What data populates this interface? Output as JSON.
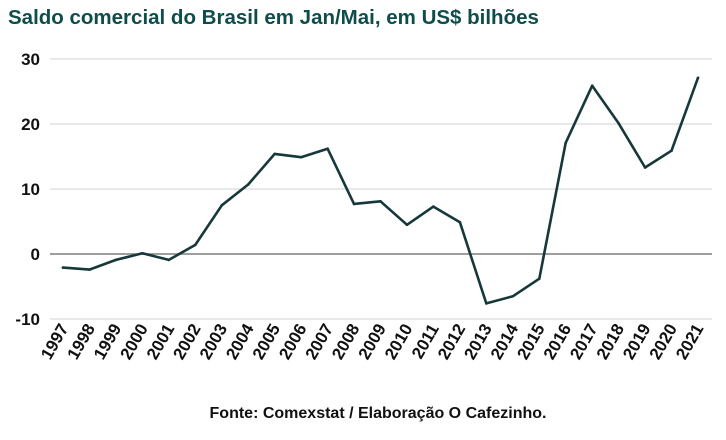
{
  "title": "Saldo comercial do Brasil em Jan/Mai, em US$ bilhões",
  "source": "Fonte: Comexstat / Elaboração O Cafezinho.",
  "colors": {
    "title": "#0f4d4b",
    "line": "#17383a",
    "grid": "#d9d9d9",
    "zero": "#7f7f7f"
  },
  "chart_data": {
    "type": "line",
    "title": "Saldo comercial do Brasil em Jan/Mai, em US$ bilhões",
    "xlabel": "",
    "ylabel": "",
    "categories": [
      "1997",
      "1998",
      "1999",
      "2000",
      "2001",
      "2002",
      "2003",
      "2004",
      "2005",
      "2006",
      "2007",
      "2008",
      "2009",
      "2010",
      "2011",
      "2012",
      "2013",
      "2014",
      "2015",
      "2016",
      "2017",
      "2018",
      "2019",
      "2020",
      "2021"
    ],
    "values": [
      -2.1,
      -2.4,
      -0.9,
      0.1,
      -0.9,
      1.4,
      7.5,
      10.7,
      15.4,
      14.9,
      16.2,
      7.7,
      8.1,
      4.5,
      7.3,
      4.9,
      -7.6,
      -6.5,
      -3.8,
      17.1,
      25.9,
      20.1,
      13.3,
      15.9,
      27.1
    ],
    "yticks": [
      -10,
      0,
      10,
      20,
      30
    ],
    "ylim": [
      -10,
      30
    ],
    "grid": true,
    "legend": "none"
  }
}
